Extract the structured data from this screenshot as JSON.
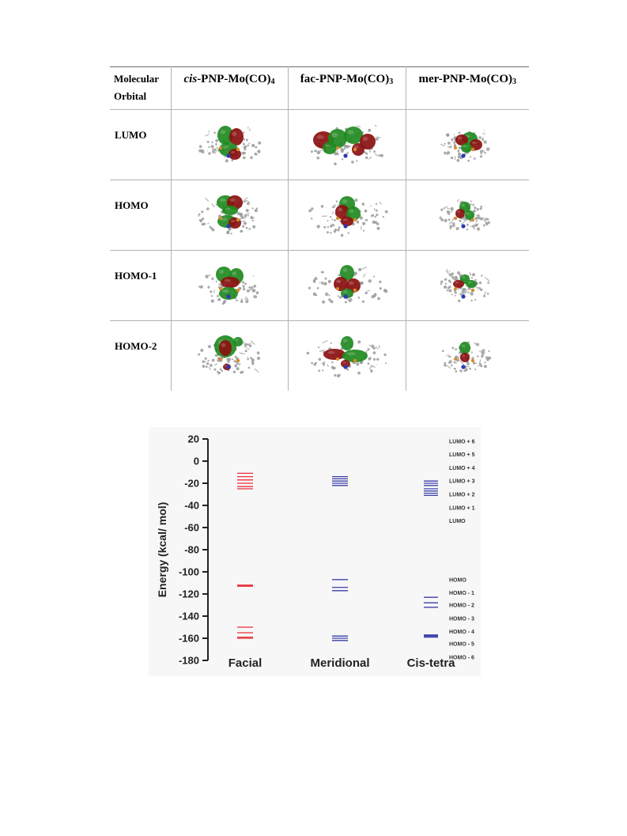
{
  "table": {
    "corner_label_line1": "Molecular",
    "corner_label_line2": "Orbital",
    "columns": [
      {
        "prefix": "cis",
        "body": "-PNP-Mo(CO)",
        "sub": "4"
      },
      {
        "prefix": "",
        "body": "fac-PNP-Mo(CO)",
        "sub": "3"
      },
      {
        "prefix": "",
        "body": "mer-PNP-Mo(CO)",
        "sub": "3"
      }
    ],
    "rows": [
      {
        "label": "LUMO"
      },
      {
        "label": "HOMO"
      },
      {
        "label": "HOMO-1"
      },
      {
        "label": "HOMO-2"
      }
    ]
  },
  "chart_data": {
    "type": "scatter",
    "title": "",
    "ylabel": "Energy (kcal/ mol)",
    "xlabel": "",
    "ylim": [
      -180,
      20
    ],
    "yticks": [
      20,
      0,
      -20,
      -40,
      -60,
      -80,
      -100,
      -120,
      -140,
      -160,
      -180
    ],
    "categories": [
      "Facial",
      "Meridional",
      "Cis-tetra"
    ],
    "series": [
      {
        "category": "Facial",
        "color": "#e8303a",
        "levels": [
          -11,
          -14,
          -17,
          -20,
          -23,
          -25,
          -112,
          -113,
          -150,
          -155,
          -159,
          -160
        ]
      },
      {
        "category": "Meridional",
        "color": "#3b3fa8",
        "levels": [
          -14,
          -16,
          -18,
          -20,
          -22,
          -107,
          -114,
          -117,
          -158,
          -160,
          -162
        ]
      },
      {
        "category": "Cis-tetra",
        "color": "#3b3fa8",
        "levels": [
          -18,
          -20,
          -22,
          -25,
          -27,
          -29,
          -31,
          -123,
          -128,
          -132,
          -157,
          -158,
          -159
        ]
      }
    ],
    "annotations": [
      "LUMO + 6",
      "LUMO + 5",
      "LUMO + 4",
      "LUMO + 3",
      "LUMO + 2",
      "LUMO + 1",
      "LUMO",
      "HOMO",
      "HOMO - 1",
      "HOMO - 2",
      "HOMO - 3",
      "HOMO - 4",
      "HOMO - 5",
      "HOMO - 6"
    ],
    "annotation_values": [
      18,
      6,
      -6,
      -18,
      -30,
      -42,
      -54,
      -107,
      -119,
      -130,
      -142,
      -154,
      -165,
      -177
    ],
    "grid": false
  }
}
